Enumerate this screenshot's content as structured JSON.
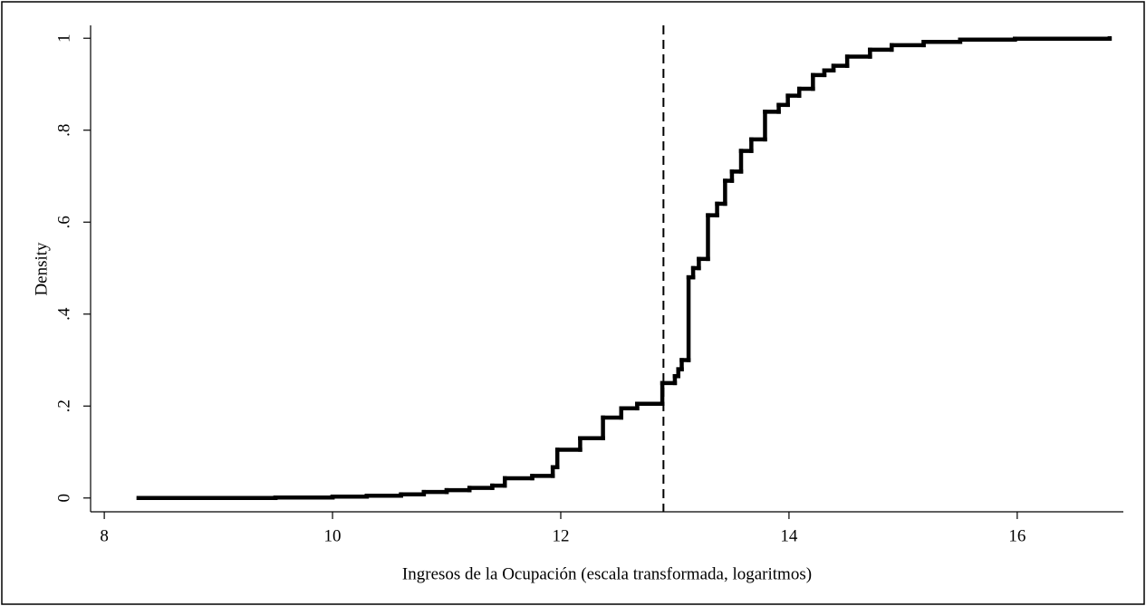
{
  "chart_data": {
    "type": "step",
    "xlabel": "Ingresos de la Ocupación (escala transformada, logaritmos)",
    "ylabel": "Density",
    "xlim": [
      7.88,
      16.93
    ],
    "ylim": [
      -0.03,
      1.028
    ],
    "xticks": [
      8,
      10,
      12,
      14,
      16
    ],
    "yticks": [
      0,
      {
        "value": 0.2,
        "label": ".2"
      },
      {
        "value": 0.4,
        "label": ".4"
      },
      {
        "value": 0.6,
        "label": ".6"
      },
      {
        "value": 0.8,
        "label": ".8"
      },
      1
    ],
    "vline": 12.9,
    "color": "#000000",
    "x": [
      8.3,
      9.5,
      10.0,
      10.3,
      10.6,
      10.8,
      11.0,
      11.2,
      11.4,
      11.51,
      11.75,
      11.93,
      11.97,
      12.17,
      12.37,
      12.53,
      12.67,
      12.89,
      13.0,
      13.03,
      13.06,
      13.12,
      13.16,
      13.21,
      13.29,
      13.37,
      13.44,
      13.5,
      13.58,
      13.67,
      13.79,
      13.91,
      13.99,
      14.09,
      14.21,
      14.31,
      14.39,
      14.51,
      14.71,
      14.9,
      15.18,
      15.5,
      15.98,
      16.81
    ],
    "values": [
      0,
      0.001,
      0.003,
      0.005,
      0.008,
      0.013,
      0.017,
      0.022,
      0.027,
      0.043,
      0.048,
      0.067,
      0.105,
      0.13,
      0.175,
      0.195,
      0.205,
      0.25,
      0.265,
      0.28,
      0.3,
      0.48,
      0.5,
      0.52,
      0.615,
      0.64,
      0.69,
      0.71,
      0.755,
      0.78,
      0.84,
      0.855,
      0.875,
      0.89,
      0.92,
      0.93,
      0.94,
      0.96,
      0.975,
      0.985,
      0.992,
      0.997,
      0.999,
      1
    ]
  }
}
